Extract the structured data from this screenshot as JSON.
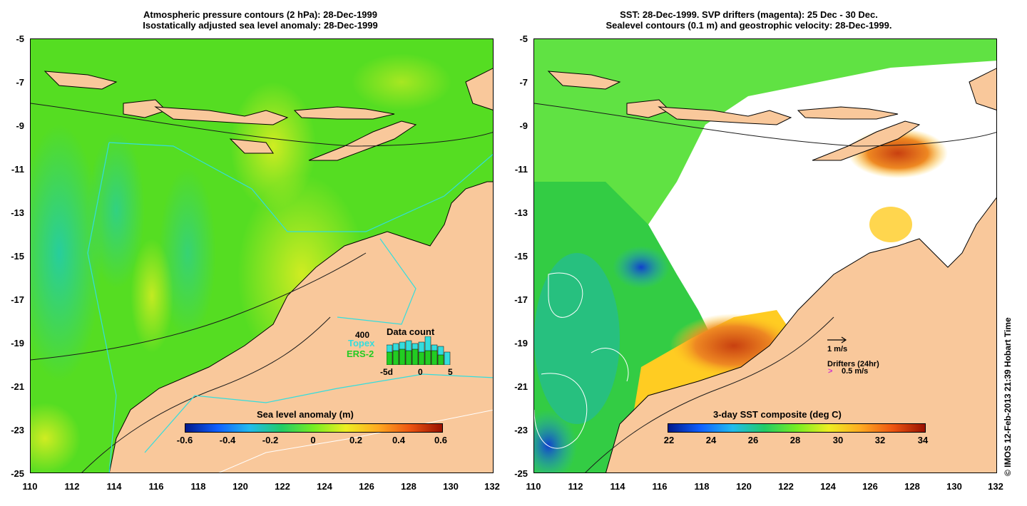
{
  "left_panel": {
    "title_line1": "Atmospheric pressure contours (2 hPa): 28-Dec-1999",
    "title_line2": "Isostatically adjusted sea level anomaly: 28-Dec-1999",
    "colorbar_title": "Sea level anomaly (m)",
    "colorbar_ticks": [
      "-0.6",
      "-0.4",
      "-0.2",
      "0",
      "0.2",
      "0.4",
      "0.6"
    ],
    "data_count": {
      "title": "Data count",
      "max_label": "400",
      "series": [
        {
          "name": "Topex",
          "color": "#33dddd"
        },
        {
          "name": "ERS-2",
          "color": "#22cc22"
        }
      ],
      "x_ticks": [
        "-5d",
        "0",
        "5"
      ]
    }
  },
  "right_panel": {
    "title_line1": "SST: 28-Dec-1999. SVP drifters (magenta): 25 Dec - 30 Dec.",
    "title_line2": "Sealevel contours (0.1 m) and geostrophic velocity: 28-Dec-1999.",
    "colorbar_title": "3-day SST composite (deg C)",
    "colorbar_ticks": [
      "22",
      "24",
      "26",
      "28",
      "30",
      "32",
      "34"
    ],
    "velocity_scale_label": "1 m/s",
    "drifters_label": "Drifters (24hr)",
    "drifters_speed_label": "0.5 m/s",
    "drifter_color": "#cc33cc"
  },
  "y_axis_ticks": [
    "-5",
    "-7",
    "-9",
    "-11",
    "-13",
    "-15",
    "-17",
    "-19",
    "-21",
    "-23",
    "-25"
  ],
  "x_axis_ticks": [
    "110",
    "112",
    "114",
    "116",
    "118",
    "120",
    "122",
    "124",
    "126",
    "128",
    "130",
    "132"
  ],
  "copyright": "© IMOS 12-Feb-2013 21:39 Hobart Time",
  "colors": {
    "land": "#f9c89b",
    "ocean_green": "#44dd22",
    "ocean_yellow_green": "#b8ee22",
    "ocean_cyan": "#22ccaa",
    "sst_warm": "#e06010",
    "track_cyan": "#33dddd"
  }
}
